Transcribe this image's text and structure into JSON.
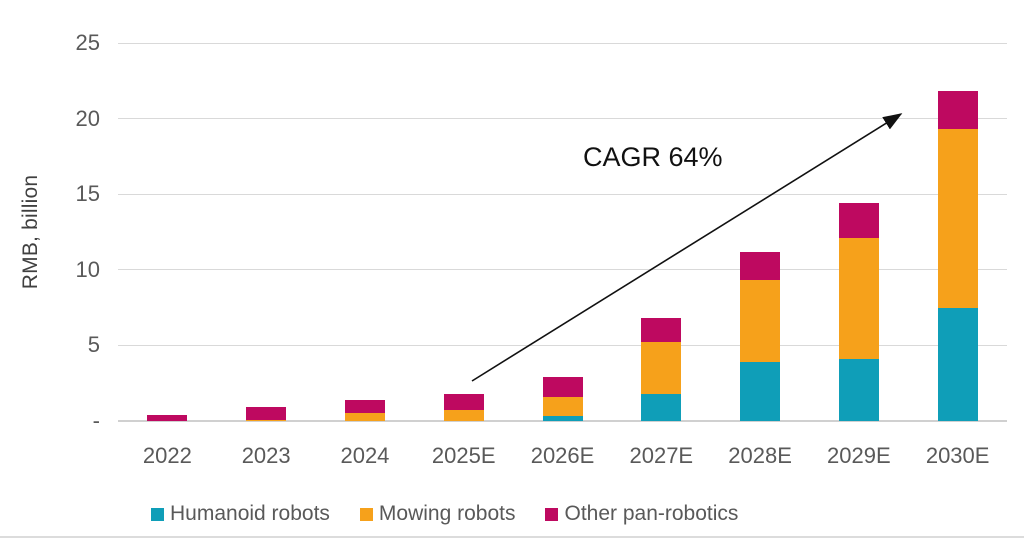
{
  "chart_data": {
    "type": "bar",
    "stacked": true,
    "title": "",
    "ylabel": "RMB, billion",
    "xlabel": "",
    "ylim": [
      0,
      25
    ],
    "grid": true,
    "legend_position": "bottom",
    "yticks": [
      {
        "value": 0,
        "label": "-"
      },
      {
        "value": 5,
        "label": "5"
      },
      {
        "value": 10,
        "label": "10"
      },
      {
        "value": 15,
        "label": "15"
      },
      {
        "value": 20,
        "label": "20"
      },
      {
        "value": 25,
        "label": "25"
      }
    ],
    "categories": [
      "2022",
      "2023",
      "2024",
      "2025E",
      "2026E",
      "2027E",
      "2028E",
      "2029E",
      "2030E"
    ],
    "series": [
      {
        "name": "Humanoid robots",
        "color": "#0F9EB8",
        "values": [
          0,
          0,
          0,
          0,
          0.3,
          1.8,
          3.9,
          4.1,
          7.5
        ]
      },
      {
        "name": "Mowing robots",
        "color": "#F6A11B",
        "values": [
          0,
          0.1,
          0.5,
          0.7,
          1.3,
          3.4,
          5.4,
          8.0,
          11.8
        ]
      },
      {
        "name": "Other pan-robotics",
        "color": "#BE0960",
        "values": [
          0.4,
          0.8,
          0.9,
          1.1,
          1.3,
          1.6,
          1.9,
          2.3,
          2.5
        ]
      }
    ],
    "annotation": {
      "text": "CAGR 64%",
      "arrow_from_category": "2025E",
      "arrow_to_category": "2030E"
    },
    "colors": {
      "gridline": "#D9D9D9",
      "axis_line": "#D0D0D0",
      "tick_text": "#595959",
      "axis_title_text": "#404040",
      "annotation_text": "#111111",
      "legend_text": "#595959",
      "arrow": "#111111",
      "background": "#FFFFFF"
    }
  }
}
